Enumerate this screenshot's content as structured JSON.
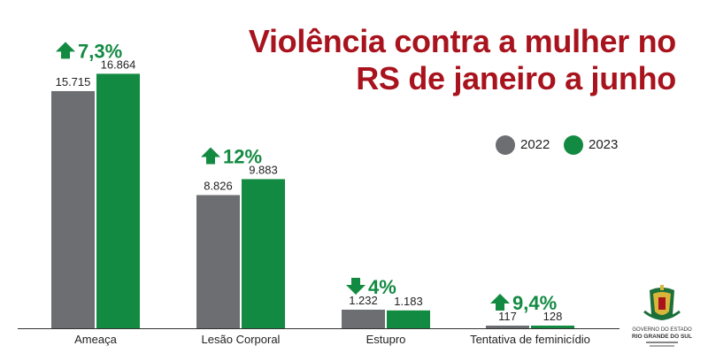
{
  "chart_data": {
    "type": "bar",
    "title_lines": [
      "Violência contra a mulher no",
      "RS de janeiro a junho"
    ],
    "categories": [
      "Ameaça",
      "Lesão Corporal",
      "Estupro",
      "Tentativa de feminicídio"
    ],
    "series": [
      {
        "name": "2022",
        "values": [
          15715,
          8826,
          1232,
          117
        ],
        "labels": [
          "15.715",
          "8.826",
          "1.232",
          "117"
        ],
        "color": "#6d6e71"
      },
      {
        "name": "2023",
        "values": [
          16864,
          9883,
          1183,
          128
        ],
        "labels": [
          "16.864",
          "9.883",
          "1.183",
          "128"
        ],
        "color": "#138a42"
      }
    ],
    "changes": [
      {
        "label": "7,3%",
        "direction": "up"
      },
      {
        "label": "12%",
        "direction": "up"
      },
      {
        "label": "4%",
        "direction": "down"
      },
      {
        "label": "9,4%",
        "direction": "up"
      }
    ],
    "change_color": "#138a42",
    "legend_position": "right",
    "grid": false,
    "ylim": [
      0,
      18000
    ]
  },
  "colors": {
    "title": "#a8131d",
    "axis": "#333333"
  },
  "logo": {
    "line1": "GOVERNO DO ESTADO",
    "line2": "RIO GRANDE DO SUL"
  }
}
